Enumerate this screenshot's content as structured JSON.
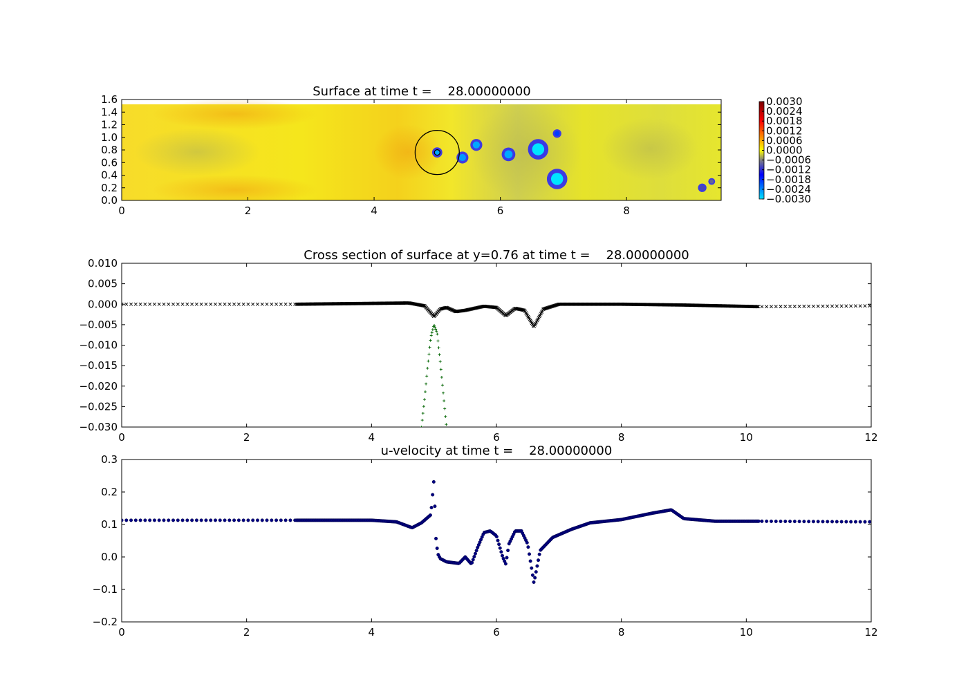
{
  "chart_data": [
    {
      "type": "heatmap",
      "title": "Surface at time t =    28.00000000",
      "xlim": [
        0,
        9.5
      ],
      "ylim": [
        0,
        1.6
      ],
      "xticks": [
        "0",
        "2",
        "4",
        "6",
        "8"
      ],
      "yticks": [
        "0.0",
        "0.2",
        "0.4",
        "0.6",
        "0.8",
        "1.0",
        "1.2",
        "1.4",
        "1.6"
      ],
      "domain_y_top": 1.52,
      "colormap": [
        "#00e5ff",
        "#0000ff",
        "#808080",
        "#ffff00",
        "#ff0000",
        "#7a0000"
      ],
      "colorbar": {
        "range": [
          -0.003,
          0.003
        ],
        "ticks": [
          "0.0030",
          "0.0024",
          "0.0018",
          "0.0012",
          "0.0006",
          "0.0000",
          "−0.0006",
          "−0.0012",
          "−0.0018",
          "−0.0024",
          "−0.0030"
        ]
      },
      "features": [
        {
          "x": 5.0,
          "y": 0.76,
          "value": -0.0026,
          "r": 0.06
        },
        {
          "x": 5.4,
          "y": 0.68,
          "value": -0.0025,
          "r": 0.07
        },
        {
          "x": 5.62,
          "y": 0.88,
          "value": -0.0026,
          "r": 0.07
        },
        {
          "x": 6.13,
          "y": 0.73,
          "value": -0.0026,
          "r": 0.08
        },
        {
          "x": 6.6,
          "y": 0.81,
          "value": -0.003,
          "r": 0.12
        },
        {
          "x": 6.9,
          "y": 1.06,
          "value": -0.0019,
          "r": 0.05
        },
        {
          "x": 6.9,
          "y": 0.34,
          "value": -0.003,
          "r": 0.12
        },
        {
          "x": 9.2,
          "y": 0.2,
          "value": -0.001,
          "r": 0.05
        },
        {
          "x": 9.35,
          "y": 0.3,
          "value": -0.0008,
          "r": 0.04
        }
      ],
      "circle": {
        "cx": 5.0,
        "cy": 0.76,
        "r": 0.35
      }
    },
    {
      "type": "scatter",
      "title": "Cross section of surface at y=0.76 at time t =    28.00000000",
      "xlim": [
        0,
        12
      ],
      "ylim": [
        -0.03,
        0.01
      ],
      "xticks": [
        "0",
        "2",
        "4",
        "6",
        "8",
        "10",
        "12"
      ],
      "yticks": [
        "0.010",
        "0.005",
        "0.000",
        "−0.005",
        "−0.010",
        "−0.015",
        "−0.020",
        "−0.025",
        "−0.030"
      ],
      "series": [
        {
          "marker": "x",
          "color": "#000000",
          "x": [
            0,
            2.8,
            4.0,
            4.6,
            4.85,
            5.0,
            5.1,
            5.2,
            5.35,
            5.5,
            5.8,
            6.0,
            6.15,
            6.3,
            6.45,
            6.6,
            6.75,
            7.0,
            8.0,
            9.0,
            10.2,
            12
          ],
          "y": [
            0.0,
            0.0,
            0.0002,
            0.0003,
            -0.0004,
            -0.003,
            -0.0012,
            -0.0008,
            -0.0018,
            -0.0015,
            -0.0005,
            -0.0008,
            -0.0028,
            -0.001,
            -0.0015,
            -0.0055,
            -0.0012,
            0.0,
            0.0,
            -0.0002,
            -0.0006,
            -0.0004
          ]
        },
        {
          "marker": "+",
          "color": "#006400",
          "x": [
            4.8,
            4.85,
            4.9,
            4.95,
            5.0,
            5.05,
            5.1,
            5.15,
            5.2
          ],
          "y": [
            -0.03,
            -0.023,
            -0.015,
            -0.008,
            -0.005,
            -0.007,
            -0.014,
            -0.022,
            -0.03
          ]
        }
      ]
    },
    {
      "type": "scatter",
      "title": "u-velocity at time t =    28.00000000",
      "xlim": [
        0,
        12
      ],
      "ylim": [
        -0.2,
        0.3
      ],
      "xticks": [
        "0",
        "2",
        "4",
        "6",
        "8",
        "10",
        "12"
      ],
      "yticks": [
        "0.3",
        "0.2",
        "0.1",
        "0.0",
        "−0.1",
        "−0.2"
      ],
      "series": [
        {
          "marker": "o",
          "color": "#000080",
          "x": [
            0,
            2.8,
            4.0,
            4.4,
            4.65,
            4.8,
            4.95,
            5.0,
            5.03,
            5.06,
            5.1,
            5.2,
            5.4,
            5.5,
            5.6,
            5.7,
            5.8,
            5.9,
            6.0,
            6.1,
            6.15,
            6.2,
            6.3,
            6.4,
            6.5,
            6.6,
            6.7,
            6.9,
            7.2,
            7.5,
            8.0,
            8.5,
            8.8,
            9.0,
            9.5,
            10.2,
            12
          ],
          "y": [
            0.113,
            0.113,
            0.113,
            0.108,
            0.09,
            0.105,
            0.13,
            0.24,
            0.06,
            0.01,
            -0.005,
            -0.015,
            -0.02,
            0.0,
            -0.022,
            0.03,
            0.075,
            0.08,
            0.065,
            0.0,
            -0.022,
            0.04,
            0.08,
            0.08,
            0.04,
            -0.08,
            0.02,
            0.06,
            0.085,
            0.105,
            0.115,
            0.135,
            0.145,
            0.118,
            0.11,
            0.11,
            0.108
          ]
        }
      ]
    }
  ]
}
